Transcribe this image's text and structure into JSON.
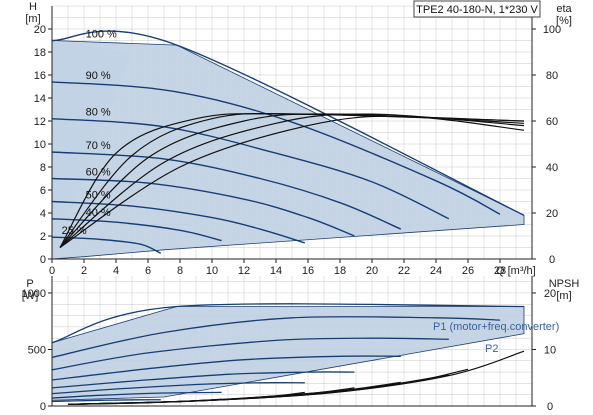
{
  "chart_data": {
    "type": "line",
    "title": "TPE2 40-180-N, 1*230 V",
    "colors": {
      "band_fill": "#bfd0e3",
      "band_stroke": "#1f3f73",
      "curve": "#173e74",
      "eta_curve": "#111111",
      "grid": "#c8c8c8",
      "light_fill": "#ddeaf6",
      "p_label": "#3a5f9e"
    },
    "upper": {
      "xlabel": "Q [m³/h]",
      "ylabel": "H",
      "ylabel_unit": "[m]",
      "y2label": "eta",
      "y2label_unit": "[%]",
      "xlim": [
        0,
        30
      ],
      "ylim": [
        0,
        22
      ],
      "y2lim": [
        0,
        110
      ],
      "x_ticks": [
        "0",
        "2",
        "4",
        "6",
        "8",
        "10",
        "12",
        "14",
        "16",
        "18",
        "20",
        "22",
        "24",
        "26",
        "28"
      ],
      "y_ticks": [
        "0",
        "2",
        "4",
        "6",
        "8",
        "10",
        "12",
        "14",
        "16",
        "18",
        "20"
      ],
      "y2_ticks": [
        "0",
        "20",
        "40",
        "60",
        "80",
        "100"
      ],
      "grid": true,
      "speed_curves": [
        {
          "label": "100 %",
          "x": [
            0,
            7.8,
            29.5
          ],
          "y": [
            19,
            18.6,
            3.8
          ]
        },
        {
          "label": "90 %",
          "x": [
            0,
            7.5,
            15,
            24,
            28
          ],
          "y": [
            15.4,
            14.6,
            11.9,
            6.8,
            3.9
          ]
        },
        {
          "label": "80 %",
          "x": [
            0,
            7,
            14,
            20,
            24.8
          ],
          "y": [
            12.2,
            11.5,
            9.2,
            6.7,
            3.5
          ]
        },
        {
          "label": "70 %",
          "x": [
            0,
            7,
            13,
            18,
            21.8
          ],
          "y": [
            9.3,
            8.7,
            7.0,
            4.9,
            2.6
          ]
        },
        {
          "label": "60 %",
          "x": [
            0,
            6,
            12,
            16,
            18.9
          ],
          "y": [
            7.0,
            6.6,
            5.2,
            3.6,
            2.0
          ]
        },
        {
          "label": "50 %",
          "x": [
            0,
            5,
            10,
            13,
            15.8
          ],
          "y": [
            5.0,
            4.6,
            3.6,
            2.6,
            1.4
          ]
        },
        {
          "label": "40 %",
          "x": [
            0,
            4,
            8,
            10.6
          ],
          "y": [
            3.5,
            3.2,
            2.5,
            1.6
          ]
        },
        {
          "label": "25 %",
          "x": [
            0,
            3,
            5.5,
            6.8
          ],
          "y": [
            1.9,
            1.7,
            1.3,
            0.5
          ]
        }
      ],
      "operating_area": {
        "x": [
          0,
          7.8,
          29.5,
          29.5,
          7,
          2,
          0
        ],
        "y": [
          19,
          18.6,
          3.8,
          3.0,
          0.8,
          0.2,
          0
        ]
      },
      "eta_curves": [
        {
          "x": [
            0.5,
            8,
            16,
            22,
            29.5
          ],
          "eta": [
            5,
            40,
            58,
            62,
            56
          ]
        },
        {
          "x": [
            0.5,
            7,
            14,
            20,
            29.5
          ],
          "eta": [
            5,
            42,
            59,
            63,
            58
          ]
        },
        {
          "x": [
            0.5,
            6,
            12,
            18,
            29.5
          ],
          "eta": [
            5,
            44,
            60,
            63,
            59
          ]
        },
        {
          "x": [
            0.5,
            5,
            10,
            16,
            29.5
          ],
          "eta": [
            5,
            45,
            61,
            63,
            60
          ]
        },
        {
          "x": [
            0.5,
            4,
            9,
            15,
            29.5
          ],
          "eta": [
            5,
            46,
            61,
            63,
            60
          ]
        }
      ],
      "curve_labels": [
        "100 %",
        "90 %",
        "80 %",
        "70 %",
        "60 %",
        "50 %",
        "40 %",
        "25 %"
      ]
    },
    "lower": {
      "ylabel": "P",
      "ylabel_unit": "[W]",
      "y2label": "NPSH",
      "y2label_unit": "[m]",
      "xlim": [
        0,
        30
      ],
      "ylim": [
        0,
        1150
      ],
      "y2lim": [
        0,
        23
      ],
      "y_ticks": [
        "0",
        "500",
        "1000"
      ],
      "y2_ticks": [
        "0",
        "10",
        "20"
      ],
      "grid": true,
      "power_band": {
        "x": [
          0,
          7.8,
          29.5,
          29.5,
          7,
          0
        ],
        "y": [
          560,
          880,
          880,
          640,
          80,
          50
        ]
      },
      "power_curves": [
        {
          "x": [
            0,
            7.8,
            29.5
          ],
          "y": [
            560,
            880,
            880
          ]
        },
        {
          "x": [
            0,
            7,
            15,
            24,
            28
          ],
          "y": [
            430,
            650,
            780,
            780,
            760
          ]
        },
        {
          "x": [
            0,
            6,
            14,
            20,
            24.8
          ],
          "y": [
            320,
            470,
            580,
            600,
            590
          ]
        },
        {
          "x": [
            0,
            6,
            12,
            18,
            21.8
          ],
          "y": [
            230,
            330,
            410,
            440,
            440
          ]
        },
        {
          "x": [
            0,
            5,
            11,
            16,
            18.9
          ],
          "y": [
            160,
            220,
            280,
            300,
            300
          ]
        },
        {
          "x": [
            0,
            4,
            9,
            13,
            15.8
          ],
          "y": [
            110,
            150,
            190,
            205,
            205
          ]
        },
        {
          "x": [
            0,
            3,
            7,
            10.6
          ],
          "y": [
            70,
            95,
            115,
            120
          ]
        },
        {
          "x": [
            0,
            3,
            5.5,
            6.8
          ],
          "y": [
            40,
            50,
            55,
            55
          ]
        }
      ],
      "npsh_curves": [
        {
          "x": [
            1,
            10,
            18,
            25,
            29.5
          ],
          "npsh": [
            0.3,
            1.0,
            2.5,
            5.5,
            9.7
          ]
        },
        {
          "x": [
            1,
            9,
            16,
            22,
            26
          ],
          "npsh": [
            0.3,
            0.9,
            2.0,
            4.0,
            6.5
          ]
        },
        {
          "x": [
            1,
            8,
            14,
            20,
            24.8
          ],
          "npsh": [
            0.3,
            0.8,
            1.7,
            3.3,
            5.5
          ]
        },
        {
          "x": [
            1,
            7,
            12,
            18,
            21.8
          ],
          "npsh": [
            0.3,
            0.7,
            1.4,
            2.7,
            4.2
          ]
        },
        {
          "x": [
            1,
            6,
            11,
            16,
            18.9
          ],
          "npsh": [
            0.3,
            0.6,
            1.2,
            2.2,
            3.2
          ]
        },
        {
          "x": [
            1,
            5,
            10,
            14,
            15.8
          ],
          "npsh": [
            0.3,
            0.5,
            1.0,
            1.8,
            2.4
          ]
        },
        {
          "x": [
            1,
            4,
            8,
            10.6
          ],
          "npsh": [
            0.3,
            0.5,
            0.8,
            1.2
          ]
        }
      ],
      "series_labels": [
        "P1 (motor+freq.converter)",
        "P2"
      ]
    }
  }
}
